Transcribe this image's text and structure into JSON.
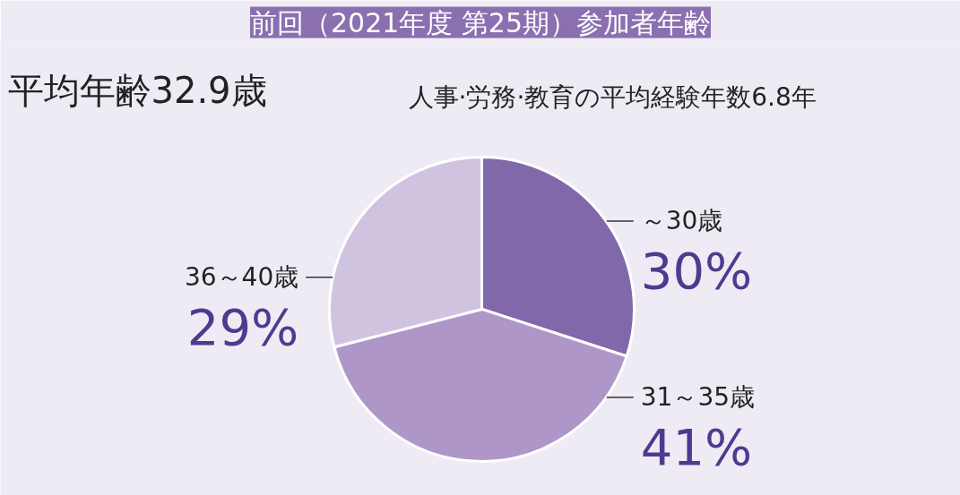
{
  "chart_data": {
    "type": "pie",
    "title": "前回（2021年度 第25期）参加者年齢",
    "categories": [
      "～30歳",
      "31～35歳",
      "36～40歳"
    ],
    "values": [
      30,
      41,
      29
    ],
    "colors": [
      "#8068ab",
      "#ae97c8",
      "#cfc3e0"
    ],
    "value_labels": [
      "30%",
      "41%",
      "29%"
    ],
    "annotations": [
      "平均年齢32.9歳",
      "人事·労務·教育の平均経験年数6.8年"
    ]
  }
}
